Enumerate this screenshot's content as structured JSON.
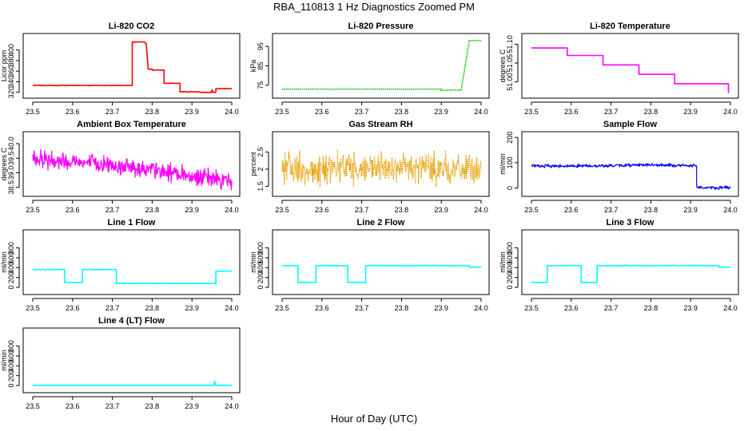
{
  "page": {
    "title": "RBA_110813  1 Hz Diagnostics Zoomed PM",
    "xlabel": "Hour of Day (UTC)"
  },
  "chart_data": [
    {
      "type": "line",
      "title": "Li-820 CO2",
      "ylabel": "Licor ppm",
      "color": "#ff0000",
      "xlim": [
        23.5,
        24.0
      ],
      "ylim": [
        315,
        425
      ],
      "xticks": [
        23.5,
        23.6,
        23.7,
        23.8,
        23.9,
        24.0
      ],
      "xtick_labels": [
        "23.5",
        "23.6",
        "23.7",
        "23.8",
        "23.9",
        "24.0"
      ],
      "yticks": [
        320,
        340,
        360,
        380,
        400
      ],
      "noise": 1,
      "series": [
        {
          "x": [
            23.5,
            23.6,
            23.65,
            23.75,
            23.75,
            23.78,
            23.785,
            23.79,
            23.8,
            23.8,
            23.83,
            23.83,
            23.87,
            23.87,
            23.92,
            23.92,
            23.95,
            23.95,
            23.955,
            23.96,
            23.96,
            24.0
          ],
          "y": [
            333,
            333,
            333,
            333,
            415,
            415,
            412,
            364,
            364,
            362,
            362,
            337,
            337,
            321,
            321,
            320,
            320,
            325,
            320,
            320,
            327,
            327
          ]
        }
      ]
    },
    {
      "type": "line",
      "title": "Li-820 Pressure",
      "ylabel": "kPa",
      "color": "#00c000",
      "xlim": [
        23.5,
        24.0
      ],
      "ylim": [
        70,
        100
      ],
      "xticks": [
        23.5,
        23.6,
        23.7,
        23.8,
        23.9,
        24.0
      ],
      "xtick_labels": [
        "23.5",
        "23.6",
        "23.7",
        "23.8",
        "23.9",
        "24.0"
      ],
      "yticks": [
        75,
        85,
        95
      ],
      "noise": 0.15,
      "dotted": true,
      "series": [
        {
          "x": [
            23.5,
            23.9,
            23.9,
            23.95,
            23.96,
            23.97,
            24.0
          ],
          "y": [
            73,
            73,
            72.5,
            72.5,
            85,
            98,
            98
          ]
        }
      ]
    },
    {
      "type": "line",
      "title": "Li-820 Temperature",
      "ylabel": "degrees C",
      "color": "#ff00ff",
      "xlim": [
        23.5,
        24.0
      ],
      "ylim": [
        50.965,
        51.12
      ],
      "xticks": [
        23.5,
        23.6,
        23.7,
        23.8,
        23.9,
        24.0
      ],
      "xtick_labels": [
        "23.5",
        "23.6",
        "23.7",
        "23.8",
        "23.9",
        "24.0"
      ],
      "yticks": [
        51.0,
        51.05,
        51.1
      ],
      "ytick_labels": [
        "51.00",
        "51.05",
        "51.10"
      ],
      "noise": 0,
      "series": [
        {
          "x": [
            23.5,
            23.59,
            23.59,
            23.68,
            23.68,
            23.77,
            23.77,
            23.86,
            23.86,
            23.995,
            23.995
          ],
          "y": [
            51.09,
            51.09,
            51.07,
            51.07,
            51.045,
            51.045,
            51.02,
            51.02,
            50.995,
            50.995,
            50.97
          ]
        }
      ]
    },
    {
      "type": "line",
      "title": "Ambient Box Temperature",
      "ylabel": "degrees C",
      "color": "#ff00ff",
      "xlim": [
        23.5,
        24.0
      ],
      "ylim": [
        38.3,
        40.3
      ],
      "xticks": [
        23.5,
        23.6,
        23.7,
        23.8,
        23.9,
        24.0
      ],
      "xtick_labels": [
        "23.5",
        "23.6",
        "23.7",
        "23.8",
        "23.9",
        "24.0"
      ],
      "yticks": [
        38.5,
        39.0,
        39.5,
        40.0
      ],
      "ytick_labels": [
        "38.5",
        "39.0",
        "39.5",
        "40.0"
      ],
      "noise": 0.2,
      "dense": true,
      "series": [
        {
          "x": [
            23.5,
            23.75,
            24.0
          ],
          "y": [
            39.5,
            39.2,
            38.7
          ]
        }
      ]
    },
    {
      "type": "line",
      "title": "Gas Stream RH",
      "ylabel": "percent",
      "color": "#e69f00",
      "xlim": [
        23.5,
        24.0
      ],
      "ylim": [
        1.3,
        3.0
      ],
      "xticks": [
        23.5,
        23.6,
        23.7,
        23.8,
        23.9,
        24.0
      ],
      "xtick_labels": [
        "23.5",
        "23.6",
        "23.7",
        "23.8",
        "23.9",
        "24.0"
      ],
      "yticks": [
        1.5,
        2.0,
        2.5
      ],
      "noise": 0.3,
      "dense": true,
      "dotted": true,
      "series": [
        {
          "x": [
            23.5,
            24.0
          ],
          "y": [
            2.0,
            2.0
          ]
        }
      ]
    },
    {
      "type": "line",
      "title": "Sample Flow",
      "ylabel": "ml/min",
      "color": "#0000ff",
      "xlim": [
        23.5,
        24.0
      ],
      "ylim": [
        -20,
        210
      ],
      "xticks": [
        23.5,
        23.6,
        23.7,
        23.8,
        23.9,
        24.0
      ],
      "xtick_labels": [
        "23.5",
        "23.6",
        "23.7",
        "23.8",
        "23.9",
        "24.0"
      ],
      "yticks": [
        0,
        100,
        200
      ],
      "noise": 4,
      "dense": true,
      "series": [
        {
          "x": [
            23.5,
            23.7,
            23.77,
            23.915,
            23.915,
            23.92,
            24.0
          ],
          "y": [
            87,
            88,
            92,
            88,
            5,
            2,
            2
          ]
        }
      ]
    },
    {
      "type": "line",
      "title": "Line 1 Flow",
      "ylabel": "ml/min",
      "color": "#00ffff",
      "xlim": [
        23.5,
        24.0
      ],
      "ylim": [
        -80,
        1100
      ],
      "xticks": [
        23.5,
        23.6,
        23.7,
        23.8,
        23.9,
        24.0
      ],
      "xtick_labels": [
        "23.5",
        "23.6",
        "23.7",
        "23.8",
        "23.9",
        "24.0"
      ],
      "yticks": [
        0,
        200,
        400,
        600,
        800
      ],
      "noise": 10,
      "series": [
        {
          "x": [
            23.5,
            23.58,
            23.58,
            23.625,
            23.625,
            23.71,
            23.71,
            23.96,
            23.96,
            24.0
          ],
          "y": [
            360,
            360,
            100,
            100,
            360,
            360,
            80,
            80,
            330,
            330
          ]
        }
      ]
    },
    {
      "type": "line",
      "title": "Line 2 Flow",
      "ylabel": "ml/min",
      "color": "#00ffff",
      "xlim": [
        23.5,
        24.0
      ],
      "ylim": [
        -80,
        1100
      ],
      "xticks": [
        23.5,
        23.6,
        23.7,
        23.8,
        23.9,
        24.0
      ],
      "xtick_labels": [
        "23.5",
        "23.6",
        "23.7",
        "23.8",
        "23.9",
        "24.0"
      ],
      "yticks": [
        0,
        200,
        400,
        600,
        800
      ],
      "noise": 8,
      "series": [
        {
          "x": [
            23.5,
            23.54,
            23.54,
            23.585,
            23.585,
            23.665,
            23.665,
            23.71,
            23.71,
            23.97,
            23.97,
            24.0
          ],
          "y": [
            440,
            440,
            100,
            100,
            440,
            440,
            100,
            100,
            440,
            440,
            410,
            410
          ]
        }
      ]
    },
    {
      "type": "line",
      "title": "Line 3 Flow",
      "ylabel": "ml/min",
      "color": "#00ffff",
      "xlim": [
        23.5,
        24.0
      ],
      "ylim": [
        -80,
        1100
      ],
      "xticks": [
        23.5,
        23.6,
        23.7,
        23.8,
        23.9,
        24.0
      ],
      "xtick_labels": [
        "23.5",
        "23.6",
        "23.7",
        "23.8",
        "23.9",
        "24.0"
      ],
      "yticks": [
        0,
        200,
        400,
        600,
        800
      ],
      "noise": 8,
      "series": [
        {
          "x": [
            23.5,
            23.5,
            23.54,
            23.54,
            23.625,
            23.625,
            23.665,
            23.665,
            23.97,
            23.97,
            24.0
          ],
          "y": [
            440,
            100,
            100,
            440,
            440,
            100,
            100,
            440,
            440,
            410,
            410
          ]
        }
      ]
    },
    {
      "type": "line",
      "title": "Line 4 (LT) Flow",
      "ylabel": "ml/min",
      "color": "#00ffff",
      "xlim": [
        23.5,
        24.0
      ],
      "ylim": [
        -80,
        1100
      ],
      "xticks": [
        23.5,
        23.6,
        23.7,
        23.8,
        23.9,
        24.0
      ],
      "xtick_labels": [
        "23.5",
        "23.6",
        "23.7",
        "23.8",
        "23.9",
        "24.0"
      ],
      "yticks": [
        0,
        200,
        400,
        600,
        800
      ],
      "noise": 4,
      "series": [
        {
          "x": [
            23.5,
            23.955,
            23.957,
            23.96,
            24.0
          ],
          "y": [
            5,
            5,
            90,
            5,
            5
          ]
        }
      ]
    }
  ]
}
